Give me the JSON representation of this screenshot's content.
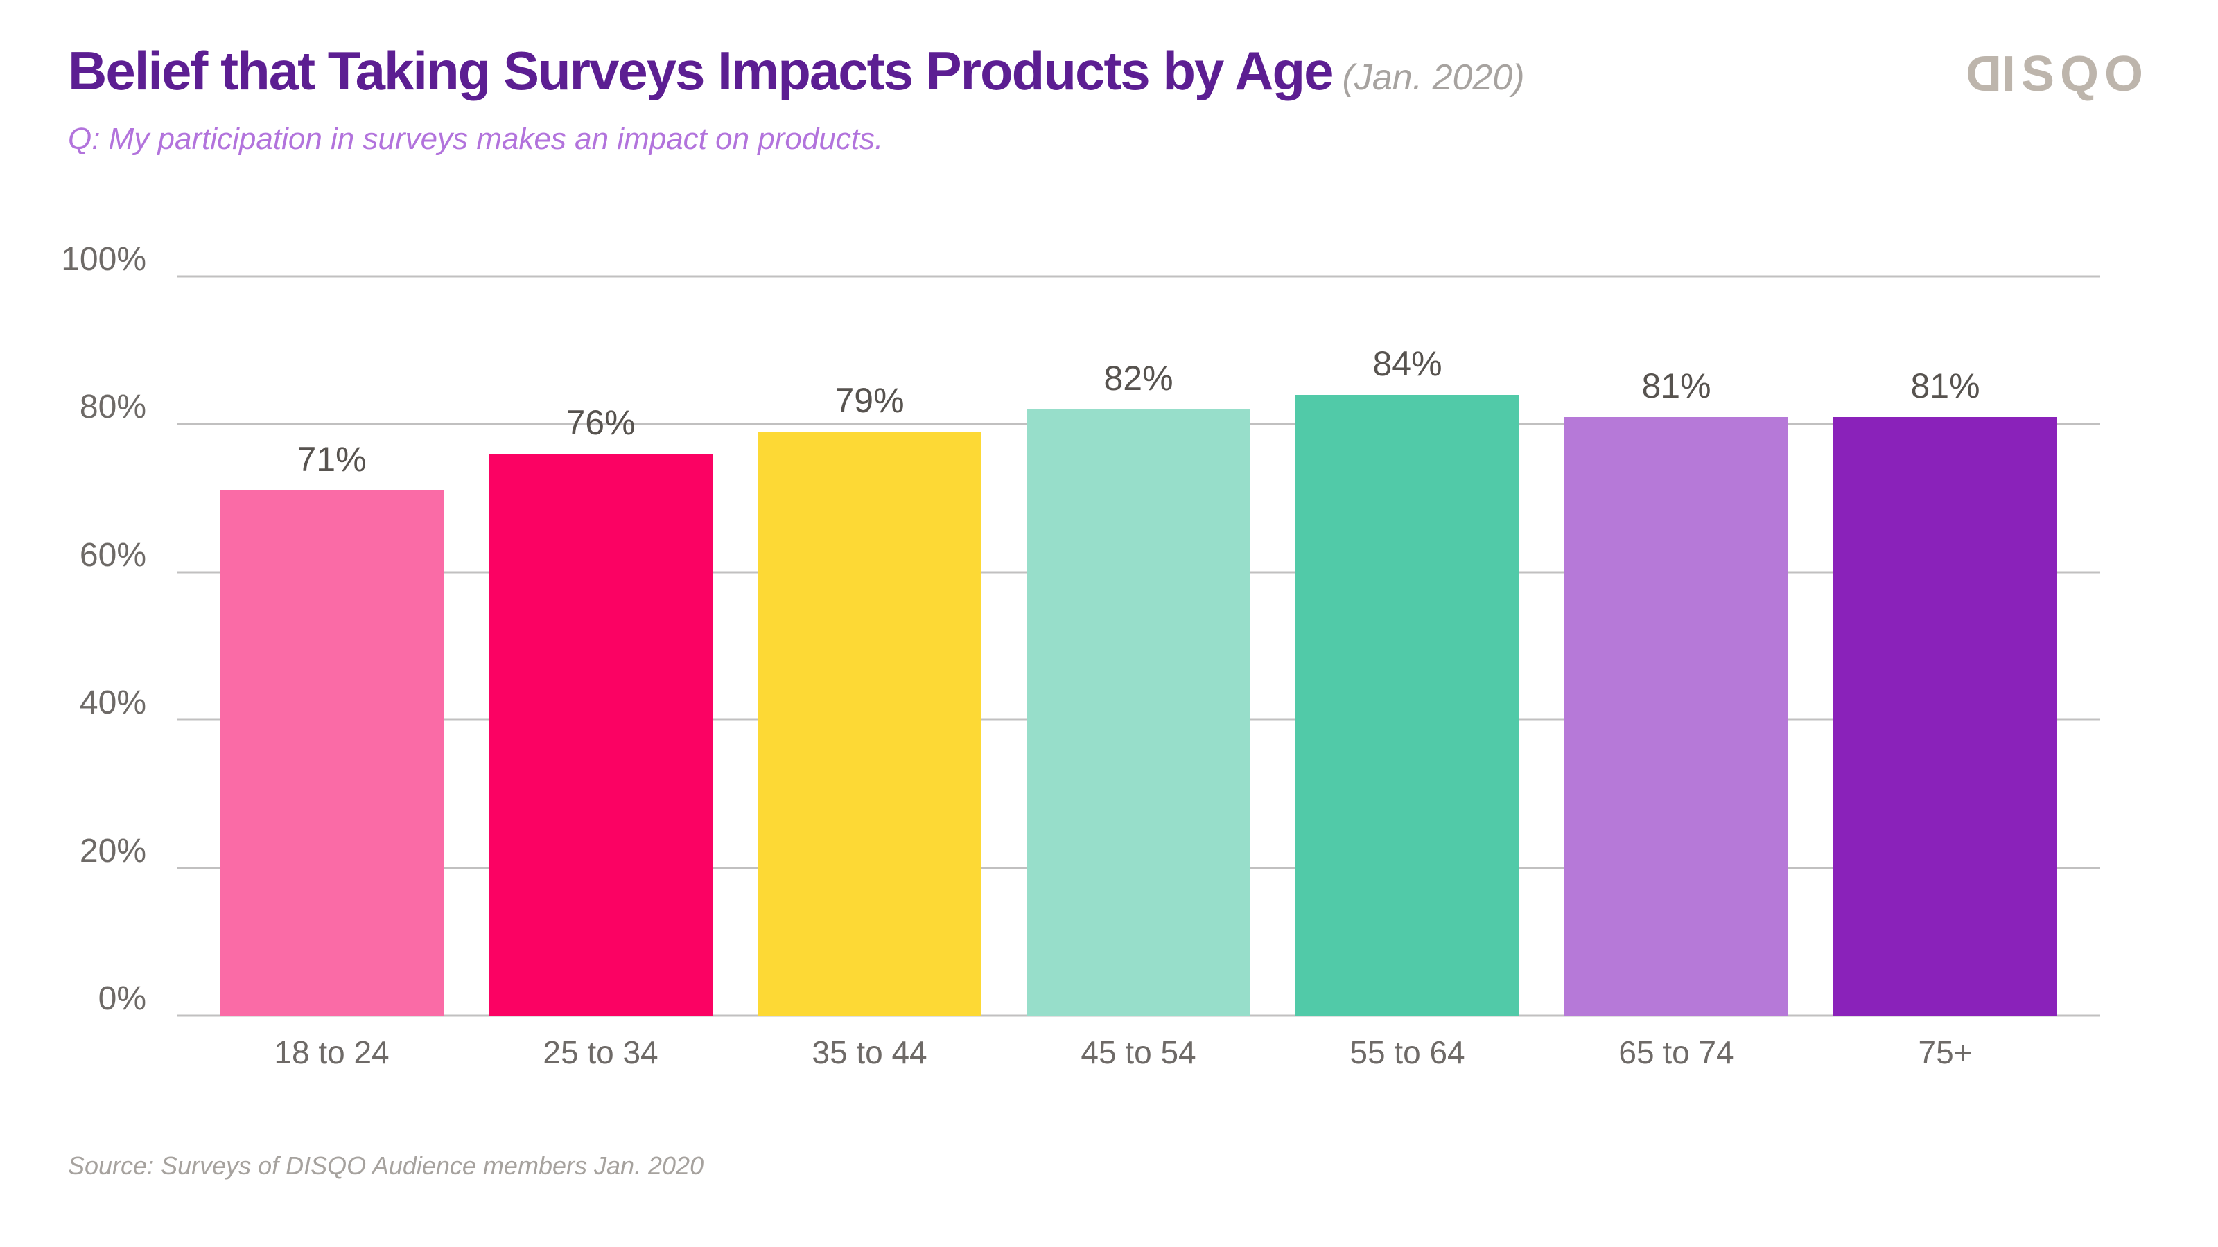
{
  "page": {
    "title": "Belief that Taking Surveys Impacts Products by Age",
    "title_suffix": "(Jan. 2020)",
    "subtitle": "Q: My participation in surveys makes an impact on products.",
    "logo_text": "DISQO",
    "source": "Source: Surveys of DISQO Audience members Jan. 2020",
    "colors": {
      "background": "#FFFFFF",
      "title": "#5C1E92",
      "title_suffix": "#A7A3A0",
      "subtitle": "#B273DC",
      "logo": "#BDB5AC",
      "grid": "#C1C0C0",
      "axis_label": "#6E6A67",
      "value_label": "#57534F",
      "source": "#A6A29E"
    }
  },
  "chart_data": {
    "type": "bar",
    "title": "Belief that Taking Surveys Impacts Products by Age (Jan. 2020)",
    "subtitle": "Q: My participation in surveys makes an impact on products.",
    "categories": [
      "18 to 24",
      "25 to 34",
      "35 to 44",
      "45 to 54",
      "55 to 64",
      "65 to 74",
      "75+"
    ],
    "values": [
      71,
      76,
      79,
      82,
      84,
      81,
      81
    ],
    "value_labels": [
      "71%",
      "76%",
      "79%",
      "82%",
      "84%",
      "81%",
      "81%"
    ],
    "bar_colors": [
      "#FA6BA6",
      "#FB0263",
      "#FDD935",
      "#97DECA",
      "#51CAA8",
      "#B679D8",
      "#8A22BA"
    ],
    "xlabel": "",
    "ylabel": "",
    "ylim": [
      0,
      100
    ],
    "ytick_values": [
      0,
      20,
      40,
      60,
      80,
      100
    ],
    "ytick_labels": [
      "0%",
      "20%",
      "40%",
      "60%",
      "80%",
      "100%"
    ],
    "grid": true,
    "legend": false,
    "source": "Source: Surveys of DISQO Audience members Jan. 2020"
  }
}
